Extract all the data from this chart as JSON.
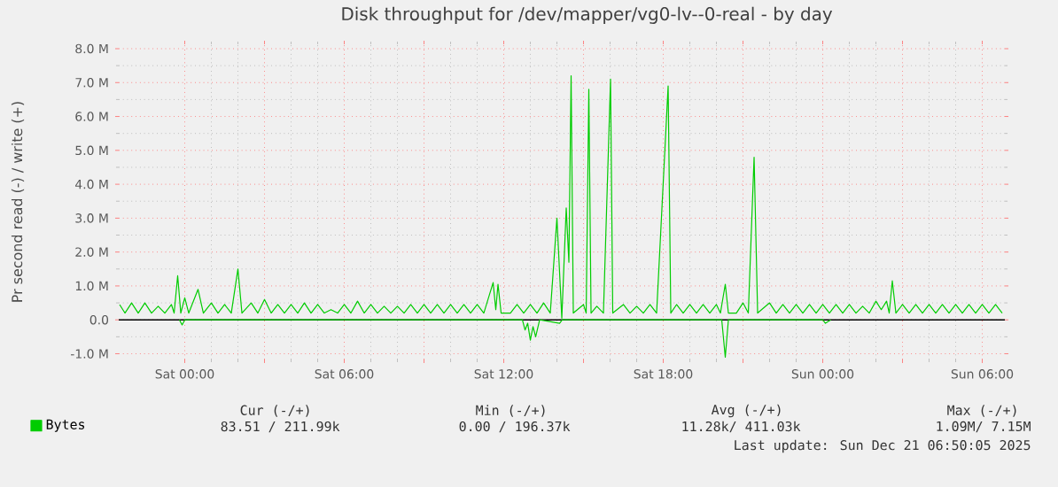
{
  "chart_data": {
    "type": "line",
    "title": "Disk throughput for /dev/mapper/vg0-lv--0-real - by day",
    "ylabel": "Pr second read (-) / write (+)",
    "xlim": [
      "2025-12-19T21:31",
      "2025-12-21T06:51"
    ],
    "xticks": [
      {
        "value": "2025-12-20T00:00",
        "label": "Sat 00:00"
      },
      {
        "value": "2025-12-20T03:00",
        "label": null
      },
      {
        "value": "2025-12-20T06:00",
        "label": "Sat 06:00"
      },
      {
        "value": "2025-12-20T09:00",
        "label": null
      },
      {
        "value": "2025-12-20T12:00",
        "label": "Sat 12:00"
      },
      {
        "value": "2025-12-20T15:00",
        "label": null
      },
      {
        "value": "2025-12-20T18:00",
        "label": "Sat 18:00"
      },
      {
        "value": "2025-12-20T21:00",
        "label": null
      },
      {
        "value": "2025-12-21T00:00",
        "label": "Sun 00:00"
      },
      {
        "value": "2025-12-21T03:00",
        "label": null
      },
      {
        "value": "2025-12-21T06:00",
        "label": "Sun 06:00"
      }
    ],
    "ylim": [
      -1.17,
      8.13
    ],
    "yticks": [
      {
        "value": -1,
        "label": "-1.0 M"
      },
      {
        "value": 0,
        "label": "0.0"
      },
      {
        "value": 1,
        "label": "1.0 M"
      },
      {
        "value": 2,
        "label": "2.0 M"
      },
      {
        "value": 3,
        "label": "3.0 M"
      },
      {
        "value": 4,
        "label": "4.0 M"
      },
      {
        "value": 5,
        "label": "5.0 M"
      },
      {
        "value": 6,
        "label": "6.0 M"
      },
      {
        "value": 7,
        "label": "7.0 M"
      },
      {
        "value": 8,
        "label": "8.0 M"
      }
    ],
    "grid": true,
    "legend": "bottom",
    "ref_lines": [
      {
        "axis": "y",
        "value": 0,
        "color": "#000000"
      }
    ],
    "series": [
      {
        "name": "Bytes",
        "color": "#00cc00",
        "x": [
          "2025-12-19T21:33",
          "2025-12-19T21:45",
          "2025-12-19T22:00",
          "2025-12-19T22:15",
          "2025-12-19T22:30",
          "2025-12-19T22:45",
          "2025-12-19T23:00",
          "2025-12-19T23:15",
          "2025-12-19T23:30",
          "2025-12-19T23:36",
          "2025-12-19T23:44",
          "2025-12-19T23:51",
          "2025-12-20T00:00",
          "2025-12-20T00:09",
          "2025-12-20T00:30",
          "2025-12-20T00:42",
          "2025-12-20T01:00",
          "2025-12-20T01:15",
          "2025-12-20T01:30",
          "2025-12-20T01:45",
          "2025-12-20T02:00",
          "2025-12-20T02:09",
          "2025-12-20T02:30",
          "2025-12-20T02:45",
          "2025-12-20T03:00",
          "2025-12-20T03:15",
          "2025-12-20T03:30",
          "2025-12-20T03:45",
          "2025-12-20T04:00",
          "2025-12-20T04:15",
          "2025-12-20T04:30",
          "2025-12-20T04:45",
          "2025-12-20T05:00",
          "2025-12-20T05:15",
          "2025-12-20T05:30",
          "2025-12-20T05:45",
          "2025-12-20T06:00",
          "2025-12-20T06:15",
          "2025-12-20T06:30",
          "2025-12-20T06:45",
          "2025-12-20T07:00",
          "2025-12-20T07:15",
          "2025-12-20T07:30",
          "2025-12-20T07:45",
          "2025-12-20T08:00",
          "2025-12-20T08:15",
          "2025-12-20T08:30",
          "2025-12-20T08:45",
          "2025-12-20T09:00",
          "2025-12-20T09:15",
          "2025-12-20T09:30",
          "2025-12-20T09:45",
          "2025-12-20T10:00",
          "2025-12-20T10:15",
          "2025-12-20T10:30",
          "2025-12-20T10:45",
          "2025-12-20T11:00",
          "2025-12-20T11:15",
          "2025-12-20T11:36",
          "2025-12-20T11:42",
          "2025-12-20T11:47",
          "2025-12-20T11:54",
          "2025-12-20T12:15",
          "2025-12-20T12:30",
          "2025-12-20T12:45",
          "2025-12-20T13:00",
          "2025-12-20T13:15",
          "2025-12-20T13:30",
          "2025-12-20T13:45",
          "2025-12-20T14:00",
          "2025-12-20T14:11",
          "2025-12-20T14:21",
          "2025-12-20T14:27",
          "2025-12-20T14:32",
          "2025-12-20T14:37",
          "2025-12-20T15:00",
          "2025-12-20T15:06",
          "2025-12-20T15:12",
          "2025-12-20T15:17",
          "2025-12-20T15:30",
          "2025-12-20T15:45",
          "2025-12-20T16:01",
          "2025-12-20T16:06",
          "2025-12-20T16:30",
          "2025-12-20T16:45",
          "2025-12-20T17:00",
          "2025-12-20T17:15",
          "2025-12-20T17:30",
          "2025-12-20T17:45",
          "2025-12-20T18:11",
          "2025-12-20T18:17",
          "2025-12-20T18:30",
          "2025-12-20T18:45",
          "2025-12-20T19:00",
          "2025-12-20T19:15",
          "2025-12-20T19:30",
          "2025-12-20T19:45",
          "2025-12-20T20:00",
          "2025-12-20T20:09",
          "2025-12-20T20:20",
          "2025-12-20T20:27",
          "2025-12-20T20:45",
          "2025-12-20T21:00",
          "2025-12-20T21:12",
          "2025-12-20T21:25",
          "2025-12-20T21:33",
          "2025-12-20T22:00",
          "2025-12-20T22:15",
          "2025-12-20T22:30",
          "2025-12-20T22:45",
          "2025-12-20T23:00",
          "2025-12-20T23:15",
          "2025-12-20T23:30",
          "2025-12-20T23:45",
          "2025-12-21T00:00",
          "2025-12-21T00:15",
          "2025-12-21T00:30",
          "2025-12-21T00:45",
          "2025-12-21T01:00",
          "2025-12-21T01:15",
          "2025-12-21T01:30",
          "2025-12-21T01:45",
          "2025-12-21T02:00",
          "2025-12-21T02:12",
          "2025-12-21T02:24",
          "2025-12-21T02:30",
          "2025-12-21T02:37",
          "2025-12-21T02:45",
          "2025-12-21T03:00",
          "2025-12-21T03:15",
          "2025-12-21T03:30",
          "2025-12-21T03:45",
          "2025-12-21T04:00",
          "2025-12-21T04:15",
          "2025-12-21T04:30",
          "2025-12-21T04:45",
          "2025-12-21T05:00",
          "2025-12-21T05:15",
          "2025-12-21T05:30",
          "2025-12-21T05:45",
          "2025-12-21T06:00",
          "2025-12-21T06:15",
          "2025-12-21T06:30",
          "2025-12-21T06:45"
        ],
        "values": [
          0.45,
          0.2,
          0.5,
          0.2,
          0.5,
          0.2,
          0.4,
          0.2,
          0.45,
          0.2,
          1.3,
          0.2,
          0.65,
          0.2,
          0.9,
          0.2,
          0.5,
          0.2,
          0.45,
          0.2,
          1.5,
          0.2,
          0.5,
          0.2,
          0.6,
          0.2,
          0.45,
          0.2,
          0.45,
          0.2,
          0.5,
          0.2,
          0.45,
          0.2,
          0.3,
          0.2,
          0.45,
          0.2,
          0.55,
          0.2,
          0.45,
          0.2,
          0.4,
          0.2,
          0.4,
          0.2,
          0.45,
          0.2,
          0.45,
          0.2,
          0.45,
          0.2,
          0.45,
          0.2,
          0.45,
          0.2,
          0.45,
          0.2,
          1.1,
          0.3,
          1.05,
          0.2,
          0.2,
          0.45,
          0.2,
          0.45,
          0.2,
          0.5,
          0.2,
          3.0,
          0.05,
          3.3,
          1.7,
          7.2,
          0.2,
          0.45,
          0.2,
          6.8,
          0.2,
          0.4,
          0.2,
          7.1,
          0.2,
          0.45,
          0.2,
          0.4,
          0.2,
          0.45,
          0.2,
          6.9,
          0.2,
          0.45,
          0.2,
          0.45,
          0.2,
          0.45,
          0.2,
          0.45,
          0.2,
          1.05,
          0.2,
          0.2,
          0.5,
          0.2,
          4.8,
          0.2,
          0.5,
          0.2,
          0.45,
          0.2,
          0.45,
          0.2,
          0.45,
          0.2,
          0.45,
          0.2,
          0.45,
          0.2,
          0.45,
          0.2,
          0.4,
          0.2,
          0.55,
          0.3,
          0.55,
          0.2,
          1.15,
          0.2,
          0.45,
          0.2,
          0.45,
          0.2,
          0.45,
          0.2,
          0.45,
          0.2,
          0.45,
          0.2,
          0.45,
          0.2,
          0.45,
          0.2,
          0.45,
          0.2
        ]
      },
      {
        "color": "#00cc00",
        "x": [
          "2025-12-19T23:48",
          "2025-12-19T23:54",
          "2025-12-20T00:00",
          "2025-12-20T12:42",
          "2025-12-20T12:48",
          "2025-12-20T12:54",
          "2025-12-20T13:00",
          "2025-12-20T13:06",
          "2025-12-20T13:12",
          "2025-12-20T13:21",
          "2025-12-20T14:06",
          "2025-12-20T14:12",
          "2025-12-20T20:12",
          "2025-12-20T20:20",
          "2025-12-20T20:27",
          "2025-12-21T00:00",
          "2025-12-21T00:06",
          "2025-12-21T00:18"
        ],
        "values": [
          0,
          -0.15,
          0,
          0,
          -0.3,
          -0.1,
          -0.6,
          -0.2,
          -0.5,
          0,
          -0.1,
          0,
          0,
          -1.1,
          0,
          0,
          -0.1,
          0
        ]
      }
    ],
    "annotations": [
      "Cur (-/+)",
      "Min (-/+)",
      "Avg (-/+)",
      "Max (-/+)",
      "83.51 / 211.99k",
      "0.00 / 196.37k",
      "11.28k/ 411.03k",
      "1.09M/ 7.15M",
      "Last update: Sun Dec 21 06:50:05 2025"
    ]
  }
}
